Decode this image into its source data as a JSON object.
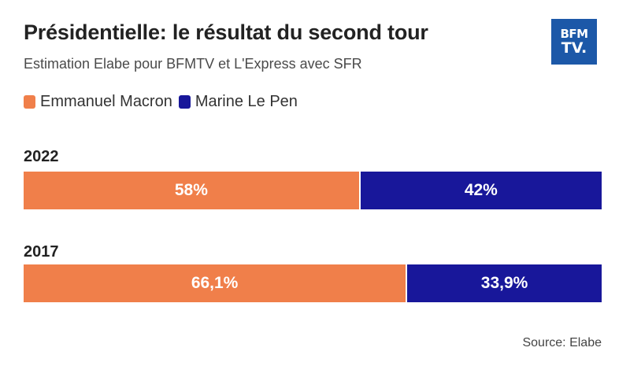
{
  "title": "Présidentielle: le résultat du second tour",
  "subtitle": "Estimation Elabe pour BFMTV et L'Express avec SFR",
  "logo": {
    "line1": "BFM",
    "line2": "TV."
  },
  "source": "Source: Elabe",
  "colors": {
    "macron": "#f07f4a",
    "lepen": "#18179a",
    "logo_bg": "#1c58a8"
  },
  "chart_data": {
    "type": "bar",
    "orientation": "horizontal",
    "stacked": true,
    "title": "Présidentielle: le résultat du second tour",
    "subtitle": "Estimation Elabe pour BFMTV et L'Express avec SFR",
    "categories": [
      "2022",
      "2017"
    ],
    "series": [
      {
        "name": "Emmanuel Macron",
        "color": "#f07f4a",
        "values": [
          58,
          66.1
        ],
        "labels": [
          "58%",
          "66,1%"
        ]
      },
      {
        "name": "Marine Le Pen",
        "color": "#18179a",
        "values": [
          42,
          33.9
        ],
        "labels": [
          "42%",
          "33,9%"
        ]
      }
    ],
    "xlim": [
      0,
      100
    ],
    "legend": "top-left",
    "grid": false
  }
}
